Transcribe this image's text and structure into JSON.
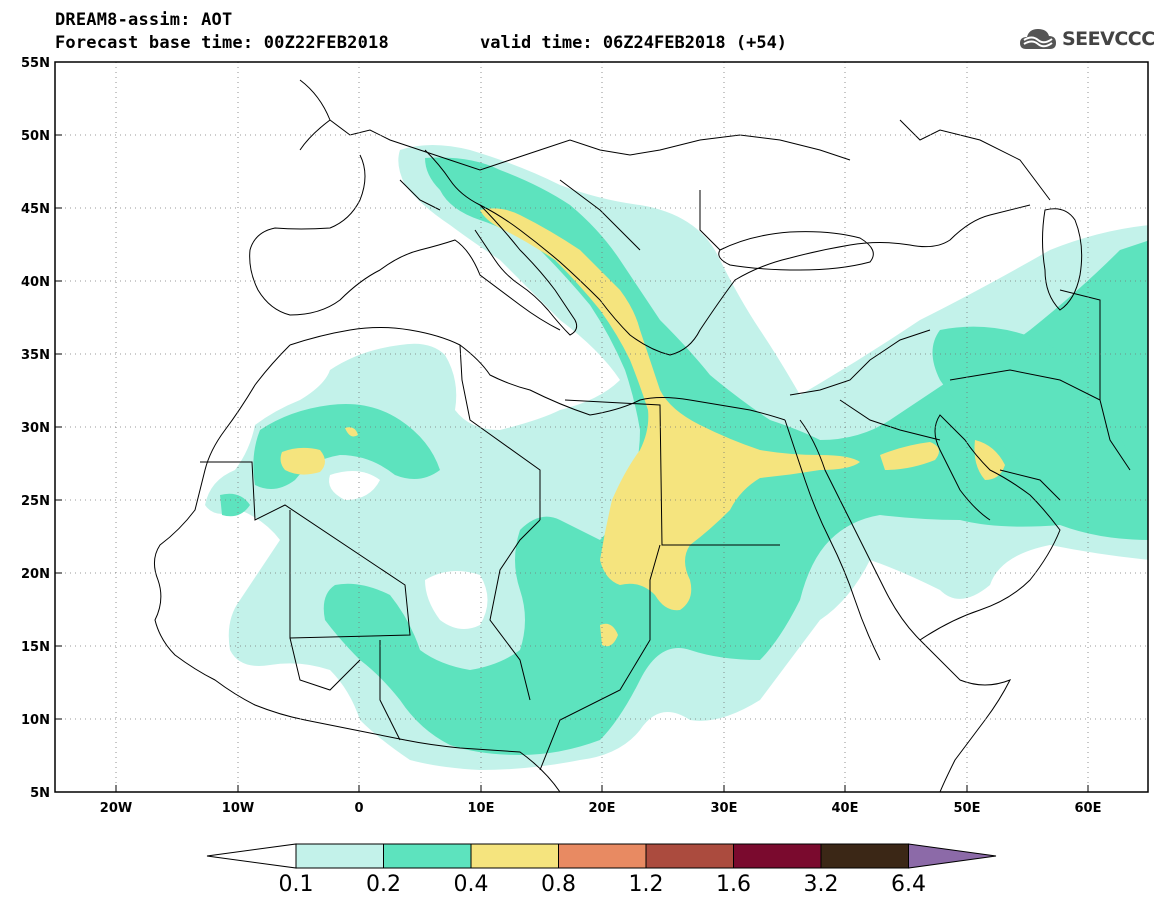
{
  "header": {
    "title_line1": "DREAM8-assim: AOT",
    "title_line2": "Forecast base time: 00Z22FEB2018",
    "title_line2b": "valid time: 06Z24FEB2018 (+54)",
    "logo_text": "SEEVCCC"
  },
  "axes": {
    "lat_labels": [
      "55N",
      "50N",
      "45N",
      "40N",
      "35N",
      "30N",
      "25N",
      "20N",
      "15N",
      "10N",
      "5N"
    ],
    "lon_labels": [
      "20W",
      "10W",
      "0",
      "10E",
      "20E",
      "30E",
      "40E",
      "50E",
      "60E"
    ]
  },
  "colorbar": {
    "labels": [
      "0.1",
      "0.2",
      "0.4",
      "0.8",
      "1.2",
      "1.6",
      "3.2",
      "6.4"
    ],
    "colors": [
      "#ffffff",
      "#c3f2ea",
      "#5de3be",
      "#f5e47e",
      "#e88a62",
      "#ab4b3e",
      "#7a0a2e",
      "#3b2716",
      "#8c6aa8"
    ]
  },
  "map_colors": {
    "level1": "#c3f2ea",
    "level2": "#5de3be",
    "level3": "#f5e47e",
    "border": "#000000"
  }
}
